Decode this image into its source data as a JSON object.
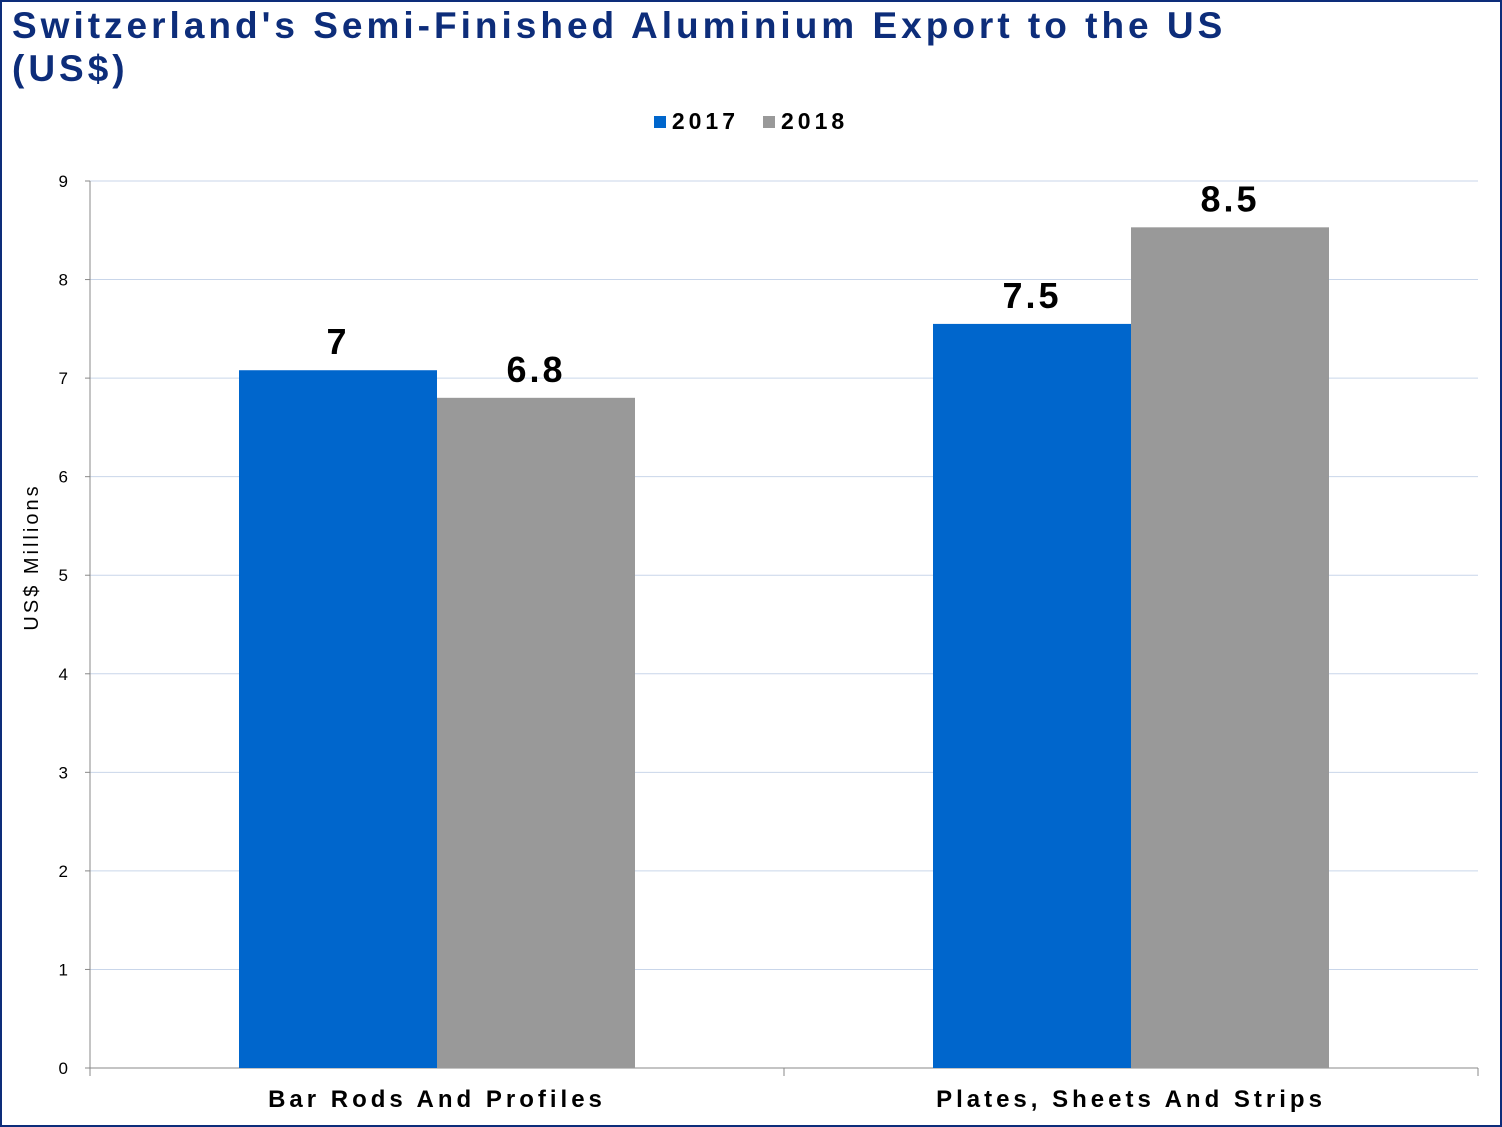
{
  "chart_data": {
    "type": "bar",
    "title": "Switzerland's Semi-Finished Aluminium Export to the US (US$)",
    "ylabel": "US$ Millions",
    "xlabel": "",
    "categories": [
      "Bar Rods And Profiles",
      "Plates, Sheets And Strips"
    ],
    "series": [
      {
        "name": "2017",
        "color": "#0066cc",
        "values": [
          7.08,
          7.55
        ],
        "labels": [
          "7",
          "7.5"
        ]
      },
      {
        "name": "2018",
        "color": "#999999",
        "values": [
          6.8,
          8.53
        ],
        "labels": [
          "6.8",
          "8.5"
        ]
      }
    ],
    "ylim": [
      0,
      9
    ],
    "yticks": [
      0,
      1,
      2,
      3,
      4,
      5,
      6,
      7,
      8,
      9
    ],
    "grid": true,
    "legend_position": "top-center"
  }
}
